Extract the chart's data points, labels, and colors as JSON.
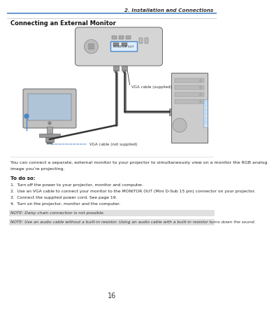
{
  "page_num": "16",
  "section_title": "2. Installation and Connections",
  "subsection_title": "Connecting an External Monitor",
  "body_text_line1": "You can connect a separate, external monitor to your projector to simultaneously view on a monitor the RGB analog",
  "body_text_line2": "image you’re projecting.",
  "todo_title": "To do so:",
  "step1": "1.  Turn off the power to your projector, monitor and computer.",
  "step2": "2.  Use an VGA cable to connect your monitor to the MONITOR OUT (Mini D-Sub 15 pin) connector on your projector.",
  "step3": "3.  Connect the supplied power cord. See page 19.",
  "step4": "4.  Turn on the projector, monitor and the computer.",
  "note1": "NOTE: Daisy chain connection is not possible.",
  "note2": "NOTE: Use an audio cable without a built-in resistor. Using an audio cable with a built-in resistor turns down the sound.",
  "label_vga_supplied": "VGA cable (supplied)",
  "label_vga_not_supplied": "VGA cable (not supplied)",
  "label_monitor_out": "MONITOR OUT",
  "top_line_color": "#4a86c8",
  "note_bg_color": "#e0e0e0",
  "bg_color": "#ffffff",
  "blue_color": "#4a86c8",
  "dark_color": "#333333",
  "gray_light": "#d0d0d0",
  "gray_mid": "#aaaaaa",
  "gray_dark": "#888888"
}
